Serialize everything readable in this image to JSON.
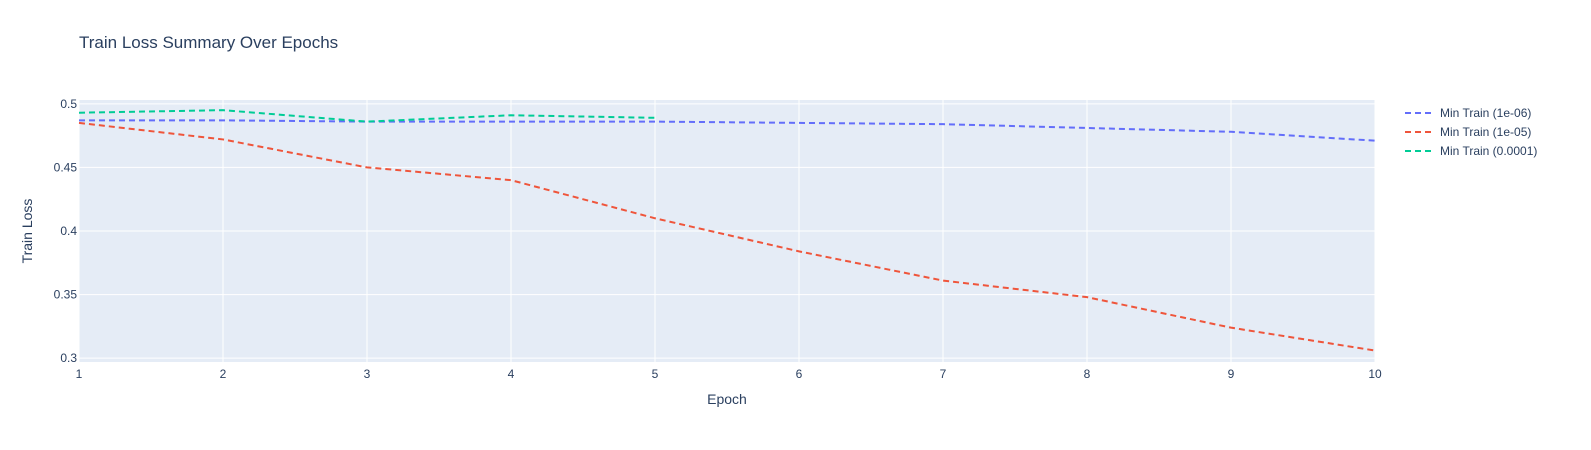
{
  "chart_data": {
    "type": "line",
    "title": "Train Loss Summary Over Epochs",
    "xlabel": "Epoch",
    "ylabel": "Train Loss",
    "xlim": [
      1,
      10
    ],
    "ylim": [
      0.297,
      0.503
    ],
    "x_ticks": [
      1,
      2,
      3,
      4,
      5,
      6,
      7,
      8,
      9,
      10
    ],
    "y_ticks": [
      0.3,
      0.35,
      0.4,
      0.45,
      0.5
    ],
    "y_tick_labels": [
      "0.3",
      "0.35",
      "0.4",
      "0.45",
      "0.5"
    ],
    "grid": true,
    "legend_position": "top-right outside",
    "series": [
      {
        "name": "Min Train (1e-06)",
        "color": "#636efa",
        "dash": "dashed",
        "x": [
          1,
          2,
          3,
          4,
          5,
          6,
          7,
          8,
          9,
          10
        ],
        "y": [
          0.487,
          0.487,
          0.486,
          0.486,
          0.486,
          0.485,
          0.484,
          0.481,
          0.478,
          0.471
        ]
      },
      {
        "name": "Min Train (1e-05)",
        "color": "#ef553b",
        "dash": "dashed",
        "x": [
          1,
          2,
          3,
          4,
          5,
          6,
          7,
          8,
          9,
          10
        ],
        "y": [
          0.485,
          0.472,
          0.45,
          0.44,
          0.41,
          0.384,
          0.361,
          0.348,
          0.324,
          0.306
        ]
      },
      {
        "name": "Min Train (0.0001)",
        "color": "#00cc96",
        "dash": "dashed",
        "x": [
          1,
          2,
          3,
          4,
          5
        ],
        "y": [
          0.493,
          0.495,
          0.486,
          0.491,
          0.489
        ]
      }
    ]
  }
}
